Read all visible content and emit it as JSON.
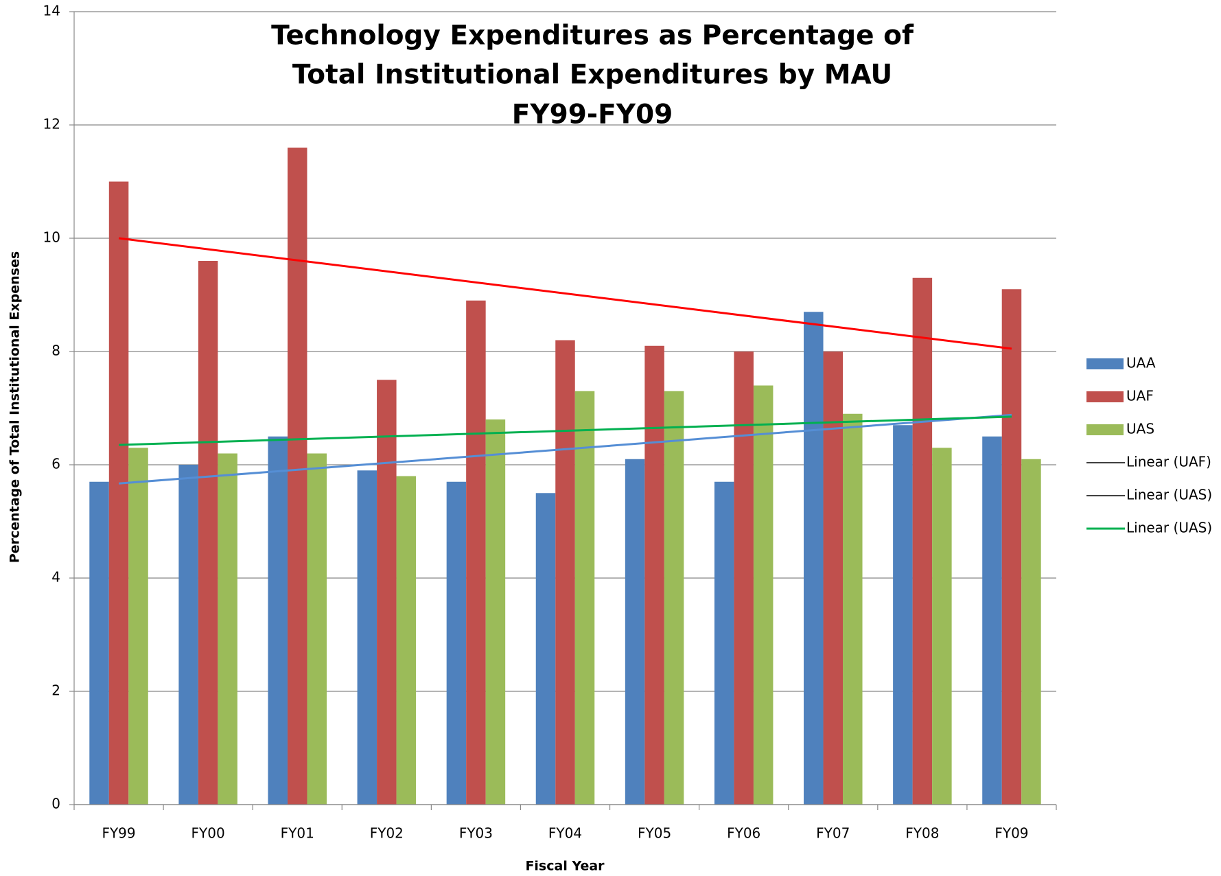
{
  "chart_data": {
    "type": "bar",
    "title": [
      "Technology Expenditures as Percentage of",
      "Total Institutional Expenditures by MAU",
      "FY99-FY09"
    ],
    "x_label": "Fiscal Year",
    "y_label": "Percentage of Total Institutional Expenses",
    "categories": [
      "FY99",
      "FY00",
      "FY01",
      "FY02",
      "FY03",
      "FY04",
      "FY05",
      "FY06",
      "FY07",
      "FY08",
      "FY09"
    ],
    "series": [
      {
        "name": "UAA",
        "color": "#4f81bd",
        "values": [
          5.7,
          6.0,
          6.5,
          5.9,
          5.7,
          5.5,
          6.1,
          5.7,
          8.7,
          6.7,
          6.5
        ]
      },
      {
        "name": "UAF",
        "color": "#c0504d",
        "values": [
          11.0,
          9.6,
          11.6,
          7.5,
          8.9,
          8.2,
          8.1,
          8.0,
          8.0,
          9.3,
          9.1
        ]
      },
      {
        "name": "UAS",
        "color": "#9bbb59",
        "values": [
          6.3,
          6.2,
          6.2,
          5.8,
          6.8,
          7.3,
          7.3,
          7.4,
          6.9,
          6.3,
          6.1
        ]
      }
    ],
    "trendlines": [
      {
        "name": "Linear (UAF)",
        "color": "#ff0000",
        "legend_color": "#000000",
        "values": [
          10.0,
          8.05
        ]
      },
      {
        "name": "Linear (UAS)",
        "color": "#558ed5",
        "legend_color": "#000000",
        "values": [
          5.67,
          6.88
        ]
      },
      {
        "name": "Linear (UAS)",
        "color": "#00b050",
        "legend_color": "#00b050",
        "values": [
          6.35,
          6.85
        ]
      }
    ],
    "ylim": [
      0,
      14
    ],
    "yticks": [
      0,
      2,
      4,
      6,
      8,
      10,
      12,
      14
    ],
    "grid": true,
    "legend": "right"
  }
}
